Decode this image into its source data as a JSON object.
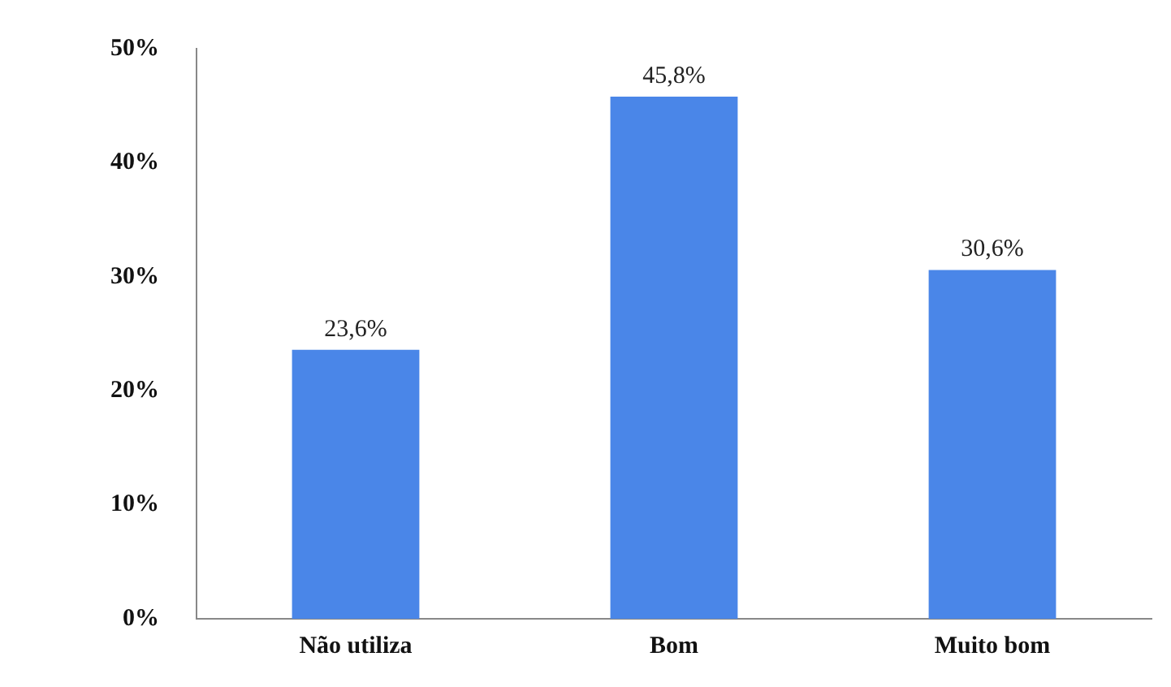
{
  "chart_data": {
    "type": "bar",
    "categories": [
      "Não utiliza",
      "Bom",
      "Muito bom"
    ],
    "values": [
      23.6,
      45.8,
      30.6
    ],
    "color": "#4a86e8",
    "value_labels": [
      "23,6%",
      "45,8%",
      "30,6%"
    ],
    "ylim": [
      0,
      50
    ],
    "yticks": [
      {
        "value": 0,
        "label": "0%"
      },
      {
        "value": 10,
        "label": "10%"
      },
      {
        "value": 20,
        "label": "20%"
      },
      {
        "value": 30,
        "label": "30%"
      },
      {
        "value": 40,
        "label": "40%"
      },
      {
        "value": 50,
        "label": "50%"
      }
    ],
    "grid": false,
    "legend": false
  }
}
